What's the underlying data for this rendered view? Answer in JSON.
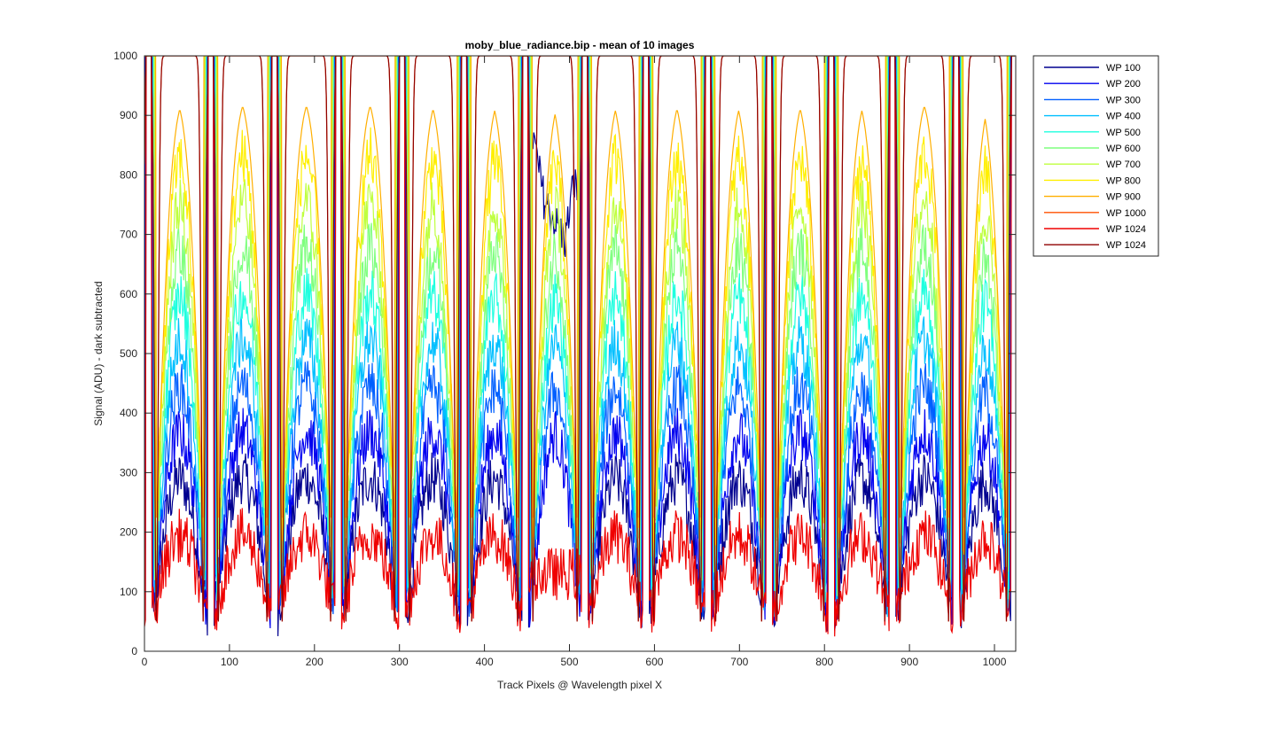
{
  "chart_data": {
    "type": "line",
    "title": "moby_blue_radiance.bip - mean of 10 images",
    "xlabel": "Track Pixels @ Wavelength pixel X",
    "ylabel": "Signal (ADU) - dark subtracted",
    "xlim": [
      0,
      1025
    ],
    "ylim": [
      0,
      1000
    ],
    "xticks": [
      0,
      100,
      200,
      300,
      400,
      500,
      600,
      700,
      800,
      900,
      1000
    ],
    "yticks": [
      0,
      100,
      200,
      300,
      400,
      500,
      600,
      700,
      800,
      900,
      1000
    ],
    "grid": false,
    "box": true,
    "legend_position": "outside-top-right",
    "track_centers": [
      5,
      78,
      153,
      228,
      303,
      376,
      448,
      518,
      590,
      663,
      735,
      808,
      880,
      955,
      1023
    ],
    "plateau": {
      "x": [
        455,
        470,
        485,
        495,
        505,
        512
      ],
      "y": [
        880,
        760,
        715,
        690,
        790,
        760
      ]
    },
    "series": [
      {
        "name": "WP 100",
        "color": "#00008f",
        "baseline": 300
      },
      {
        "name": "WP 200",
        "color": "#0000ef",
        "baseline": 380
      },
      {
        "name": "WP 300",
        "color": "#005fff",
        "baseline": 460
      },
      {
        "name": "WP 400",
        "color": "#00bfff",
        "baseline": 540
      },
      {
        "name": "WP 500",
        "color": "#1fffdf",
        "baseline": 620
      },
      {
        "name": "WP 600",
        "color": "#7fff7f",
        "baseline": 700
      },
      {
        "name": "WP 700",
        "color": "#bfff3f",
        "baseline": 780
      },
      {
        "name": "WP 800",
        "color": "#ffef00",
        "baseline": 860
      },
      {
        "name": "WP 900",
        "color": "#ffaf00",
        "baseline": 940
      },
      {
        "name": "WP 1000",
        "color": "#ff5000",
        "baseline": 1000
      },
      {
        "name": "WP 1024",
        "color": "#ef0000",
        "baseline": 200
      },
      {
        "name": "WP 1024",
        "color": "#8f0000",
        "baseline": 1000
      }
    ]
  }
}
